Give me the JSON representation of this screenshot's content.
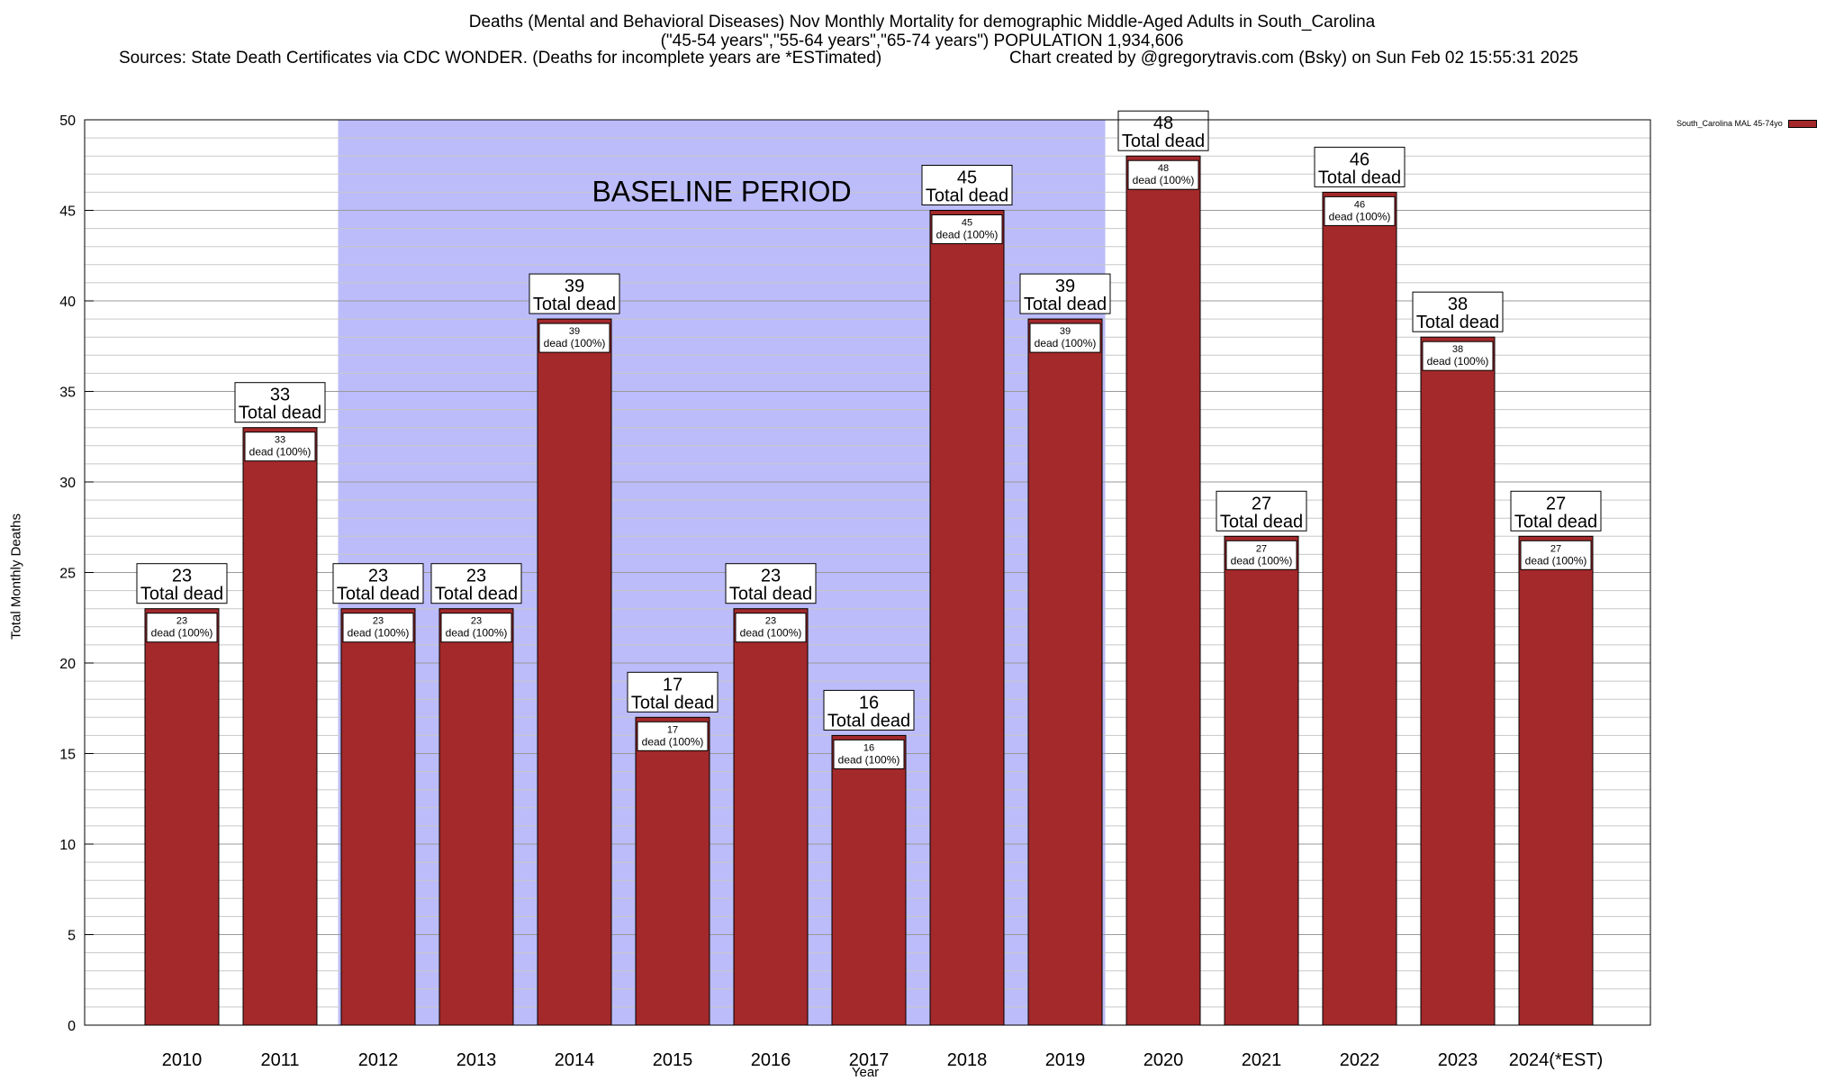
{
  "chart_data": {
    "type": "bar",
    "title_lines": [
      "Deaths (Mental and Behavioral Diseases) Nov Monthly Mortality for demographic Middle-Aged Adults in South_Carolina",
      "(\"45-54 years\",\"55-64 years\",\"65-74 years\") POPULATION 1,934,606"
    ],
    "source_text": "Sources: State Death Certificates via CDC WONDER. (Deaths for incomplete years are *ESTimated)",
    "credit_text": "Chart created by @gregorytravis.com (Bsky) on Sun Feb 02 15:55:31 2025",
    "xlabel": "Year",
    "ylabel": "Total Monthly Deaths",
    "ylim": [
      0,
      50
    ],
    "y_ticks": [
      0,
      5,
      10,
      15,
      20,
      25,
      30,
      35,
      40,
      45,
      50
    ],
    "y_minor_step": 1,
    "grid": true,
    "categories": [
      "2010",
      "2011",
      "2012",
      "2013",
      "2014",
      "2015",
      "2016",
      "2017",
      "2018",
      "2019",
      "2020",
      "2021",
      "2022",
      "2023",
      "2024(*EST)"
    ],
    "series": [
      {
        "name": "South_Carolina MAL 45-74yo",
        "color": "#a3292b",
        "values": [
          23,
          33,
          23,
          23,
          39,
          17,
          23,
          16,
          45,
          39,
          48,
          27,
          46,
          38,
          27
        ]
      }
    ],
    "total_label_suffix": "Total dead",
    "inner_label_suffix": "dead (100%)",
    "baseline_period": {
      "label": "BASELINE PERIOD",
      "start_category": "2012",
      "end_category": "2019",
      "color": "#bcbcfa"
    },
    "legend_position": "top-right"
  }
}
